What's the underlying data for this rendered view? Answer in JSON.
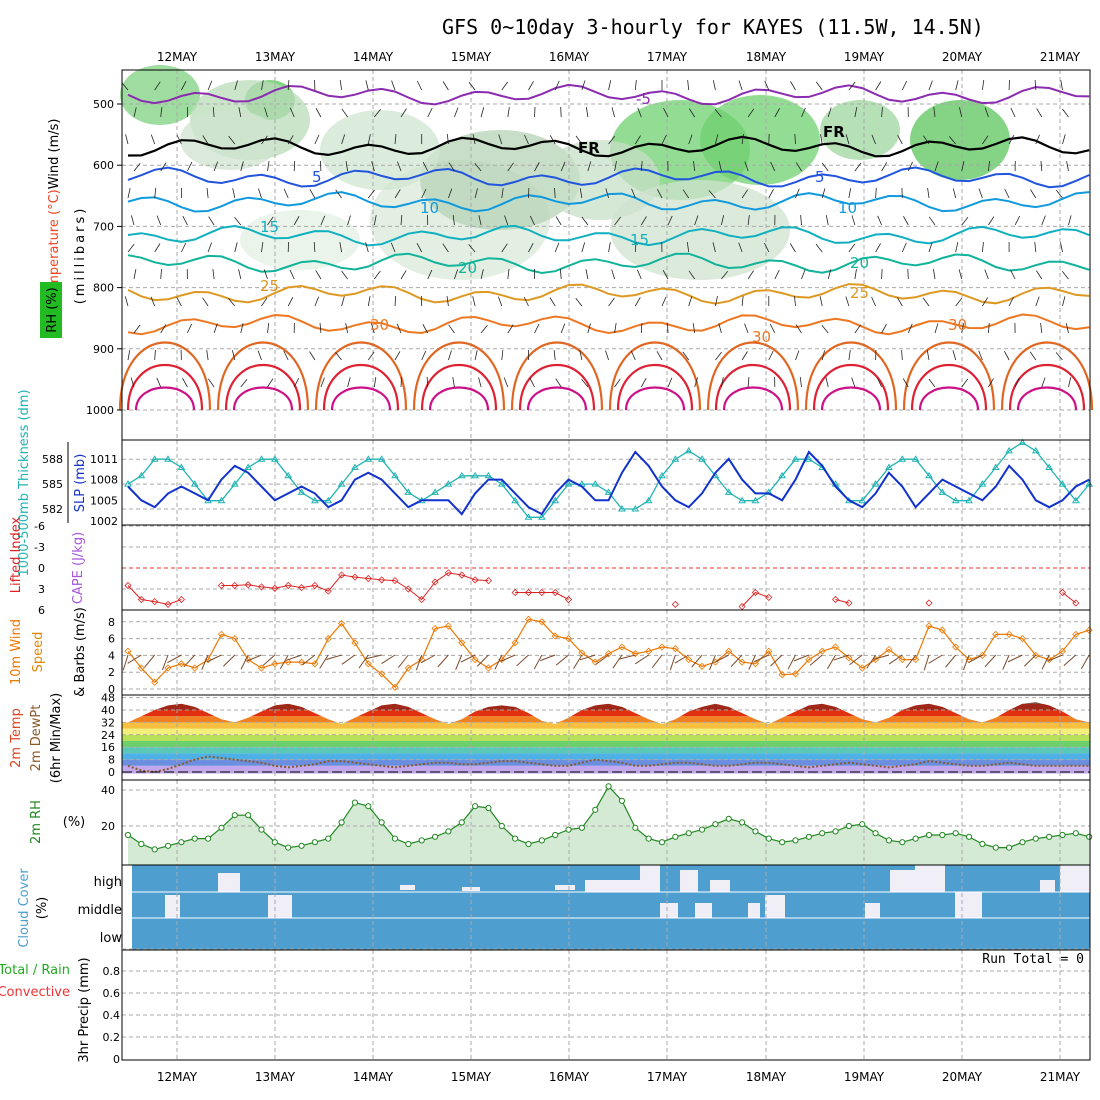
{
  "title": "GFS 0~10day 3-hourly for KAYES (11.5W, 14.5N)",
  "run_total_label": "Run Total = 0",
  "colors": {
    "rh": "#22bb22",
    "temperature": "#ee4422",
    "wind": "#6a1b9a",
    "thickness": "#22b3b3",
    "slp": "#1133cc",
    "lifted": "#dd2222",
    "cape": "#aa55dd",
    "wind10": "#ee7700",
    "cloud": "#4f9ed0",
    "rh2m": "#228822"
  },
  "chart_data": [
    {
      "type": "contour",
      "name": "upper-air",
      "ylabel_wind": "Wind (m/s)",
      "ylabel_temp": "Temperature (°C)",
      "ylabel_rh": "RH (%)",
      "ylabel_mb": "(millibars)",
      "dates": [
        "12MAY",
        "13MAY",
        "14MAY",
        "15MAY",
        "16MAY",
        "17MAY",
        "18MAY",
        "19MAY",
        "20MAY",
        "21MAY"
      ],
      "yticks": [
        500,
        600,
        700,
        800,
        900,
        1000
      ],
      "ylim": [
        470,
        1000
      ],
      "freezing_label": "FR",
      "isotherms": [
        {
          "label": "-5",
          "mb": 485,
          "color": "#8a2bb0"
        },
        {
          "label": "FR",
          "mb": 570,
          "color": "#000000"
        },
        {
          "label": "5",
          "mb": 620,
          "color": "#2255dd"
        },
        {
          "label": "10",
          "mb": 660,
          "color": "#1199dd"
        },
        {
          "label": "15",
          "mb": 715,
          "color": "#11b0c0"
        },
        {
          "label": "20",
          "mb": 760,
          "color": "#11b39a"
        },
        {
          "label": "25",
          "mb": 810,
          "color": "#dd9922"
        },
        {
          "label": "30",
          "mb": 860,
          "color": "#ee7722"
        }
      ],
      "contour_labels": [
        "-5",
        "5",
        "10",
        "15",
        "20",
        "25",
        "30",
        "30",
        "FR",
        "FR"
      ]
    },
    {
      "type": "line",
      "name": "thickness-slp",
      "ylabel_thickness": "1000-500mb Thickness (dm)",
      "ylabel_slp": "SLP (mb)",
      "thickness_ticks": [
        582,
        585,
        588
      ],
      "slp_ticks": [
        1002,
        1005,
        1008,
        1011
      ],
      "thickness": [
        585,
        586,
        588,
        588,
        587,
        585,
        583,
        583,
        585,
        587,
        588,
        588,
        586,
        584,
        583,
        583,
        585,
        587,
        588,
        588,
        586,
        584,
        583,
        584,
        585,
        586,
        586,
        586,
        585,
        583,
        581,
        581,
        583,
        585,
        585,
        585,
        584,
        582,
        582,
        583,
        586,
        588,
        589,
        588,
        586,
        584,
        583,
        583,
        584,
        586,
        588,
        588,
        587,
        585,
        583,
        583,
        585,
        587,
        588,
        588,
        586,
        584,
        583,
        583,
        585,
        587,
        589,
        590,
        589,
        587,
        585,
        583,
        585
      ],
      "slp": [
        1007,
        1005,
        1004,
        1006,
        1007,
        1006,
        1005,
        1008,
        1010,
        1009,
        1007,
        1005,
        1006,
        1007,
        1006,
        1004,
        1005,
        1008,
        1009,
        1008,
        1006,
        1004,
        1005,
        1005,
        1005,
        1003,
        1006,
        1008,
        1008,
        1006,
        1004,
        1003,
        1006,
        1008,
        1007,
        1005,
        1005,
        1009,
        1012,
        1010,
        1007,
        1005,
        1004,
        1006,
        1009,
        1011,
        1008,
        1006,
        1006,
        1005,
        1008,
        1012,
        1010,
        1007,
        1005,
        1004,
        1006,
        1009,
        1007,
        1004,
        1006,
        1008,
        1007,
        1006,
        1005,
        1007,
        1010,
        1008,
        1005,
        1004,
        1005,
        1007,
        1008
      ]
    },
    {
      "type": "line",
      "name": "lifted-cape",
      "ylabel_lifted": "Lifted Index",
      "ylabel_cape": "CAPE (J/kg)",
      "yticks": [
        -6,
        -3,
        0,
        3,
        6
      ],
      "ylim": [
        -6,
        6
      ],
      "lifted": [
        2.5,
        4.5,
        4.8,
        5.2,
        4.5,
        null,
        null,
        2.5,
        2.5,
        2.4,
        2.7,
        2.9,
        2.5,
        2.8,
        2.5,
        3.3,
        1.0,
        1.3,
        1.5,
        1.7,
        1.8,
        3.0,
        4.5,
        2.0,
        0.7,
        1.0,
        1.7,
        1.8,
        null,
        3.5,
        3.5,
        3.5,
        3.5,
        4.5,
        null,
        null,
        null,
        null,
        null,
        null,
        null,
        5.2,
        null,
        null,
        null,
        null,
        5.5,
        3.5,
        4.2,
        null,
        null,
        null,
        null,
        4.5,
        5.0,
        null,
        null,
        null,
        null,
        null,
        5.0,
        null,
        null,
        null,
        null,
        null,
        null,
        null,
        null,
        null,
        3.5,
        5.0
      ],
      "cape": []
    },
    {
      "type": "line",
      "name": "wind10",
      "ylabel_wind": "10m Wind",
      "ylabel_speed": "Speed & Barbs (m/s)",
      "yticks": [
        0,
        2,
        4,
        6,
        8
      ],
      "ylim": [
        0,
        9
      ],
      "speed": [
        4.5,
        2.5,
        0.8,
        2.5,
        3.0,
        2.5,
        3.5,
        6.5,
        6.0,
        3.5,
        2.5,
        3.0,
        3.2,
        3.2,
        3.0,
        6.0,
        7.8,
        5.5,
        3.0,
        1.8,
        0.2,
        2.5,
        3.5,
        7.2,
        7.5,
        5.5,
        3.5,
        2.5,
        3.5,
        5.5,
        8.3,
        8.0,
        6.3,
        6.0,
        4.3,
        3.2,
        4.2,
        5.0,
        4.2,
        4.5,
        5.0,
        4.8,
        3.5,
        2.7,
        3.2,
        4.5,
        3.2,
        3.0,
        4.5,
        1.7,
        1.8,
        3.5,
        4.5,
        5.0,
        3.7,
        2.5,
        3.5,
        4.7,
        3.5,
        3.5,
        7.5,
        7.0,
        5.0,
        3.5,
        4.0,
        6.5,
        6.5,
        6.0,
        4.0,
        3.5,
        4.5,
        6.5,
        7.0
      ]
    },
    {
      "type": "area",
      "name": "temp2m",
      "ylabel_temp": "2m Temp",
      "ylabel_dew": "2m DewPt",
      "ylabel_minmax": "(6hr Min/Max)",
      "yticks": [
        0,
        8,
        16,
        24,
        32,
        40,
        48
      ],
      "ylim": [
        -1,
        48
      ],
      "temp": [
        32,
        36,
        40,
        43,
        44,
        42,
        38,
        34,
        32,
        35,
        39,
        43,
        44,
        42,
        38,
        34,
        31,
        35,
        39,
        43,
        44,
        42,
        38,
        34,
        31,
        34,
        39,
        42,
        43,
        42,
        38,
        33,
        31,
        35,
        40,
        43,
        44,
        42,
        38,
        34,
        31,
        34,
        39,
        42,
        44,
        42,
        38,
        34,
        31,
        35,
        39,
        43,
        44,
        42,
        38,
        34,
        32,
        35,
        40,
        43,
        44,
        42,
        38,
        34,
        32,
        35,
        40,
        44,
        45,
        43,
        39,
        34,
        32
      ],
      "dewpoint": [
        4,
        1,
        0,
        2,
        5,
        8,
        10,
        9,
        8,
        7,
        6,
        4,
        3,
        4,
        5,
        7,
        7,
        6,
        5,
        4,
        3,
        4,
        5,
        6,
        6,
        5,
        5,
        6,
        7,
        7,
        6,
        5,
        4,
        4,
        6,
        8,
        7,
        6,
        4,
        4,
        5,
        6,
        6,
        5,
        4,
        4,
        5,
        6,
        6,
        5,
        4,
        3,
        4,
        5,
        6,
        5,
        4,
        3,
        4,
        5,
        7,
        6,
        5,
        4,
        4,
        5,
        6,
        5,
        4,
        4,
        4,
        4,
        4
      ]
    },
    {
      "type": "area",
      "name": "rh2m",
      "ylabel": "2m RH",
      "unit": "(%)",
      "yticks": [
        20,
        40
      ],
      "ylim": [
        0,
        45
      ],
      "values": [
        15,
        10,
        7,
        9,
        11,
        13,
        13,
        19,
        26,
        26,
        18,
        11,
        8,
        9,
        11,
        13,
        22,
        33,
        31,
        22,
        13,
        10,
        12,
        14,
        17,
        22,
        31,
        30,
        20,
        13,
        10,
        12,
        15,
        18,
        19,
        29,
        42,
        34,
        19,
        13,
        11,
        14,
        16,
        18,
        21,
        24,
        22,
        17,
        13,
        11,
        12,
        14,
        16,
        17,
        20,
        21,
        16,
        12,
        11,
        13,
        15,
        15,
        16,
        14,
        10,
        8,
        8,
        11,
        13,
        14,
        15,
        16,
        14
      ]
    },
    {
      "type": "bar",
      "name": "cloud-cover",
      "ylabel": "Cloud Cover",
      "unit": "(%)",
      "levels": [
        "high",
        "middle",
        "low"
      ]
    },
    {
      "type": "bar",
      "name": "precip",
      "ylabel_total": "Total / Rain",
      "ylabel_conv": "Convective",
      "ylabel_precip": "3hr Precip (mm)",
      "yticks": [
        "0",
        "0.2",
        "0.4",
        "0.6",
        "0.8"
      ],
      "ylim": [
        0,
        1.0
      ],
      "values": []
    }
  ]
}
